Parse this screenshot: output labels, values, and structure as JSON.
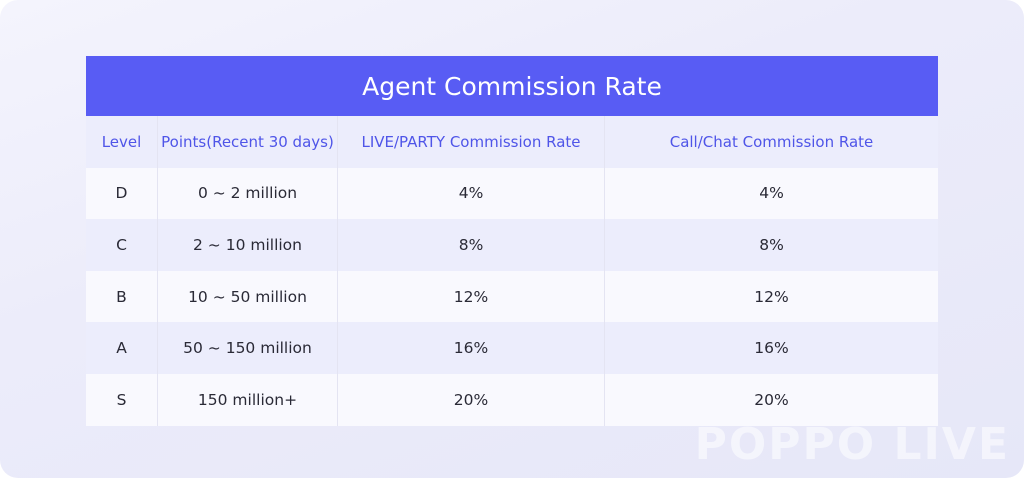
{
  "table": {
    "title": "Agent Commission Rate",
    "header": [
      "Level",
      "Points(Recent 30 days)",
      "LIVE/PARTY Commission Rate",
      "Call/Chat Commission Rate"
    ],
    "rows": [
      [
        "D",
        "0 ~ 2 million",
        "4%",
        "4%"
      ],
      [
        "C",
        "2 ~ 10 million",
        "8%",
        "8%"
      ],
      [
        "B",
        "10 ~ 50 million",
        "12%",
        "12%"
      ],
      [
        "A",
        "50 ~ 150 million",
        "16%",
        "16%"
      ],
      [
        "S",
        "150 million+",
        "20%",
        "20%"
      ]
    ]
  },
  "watermark": "POPPO LIVE"
}
